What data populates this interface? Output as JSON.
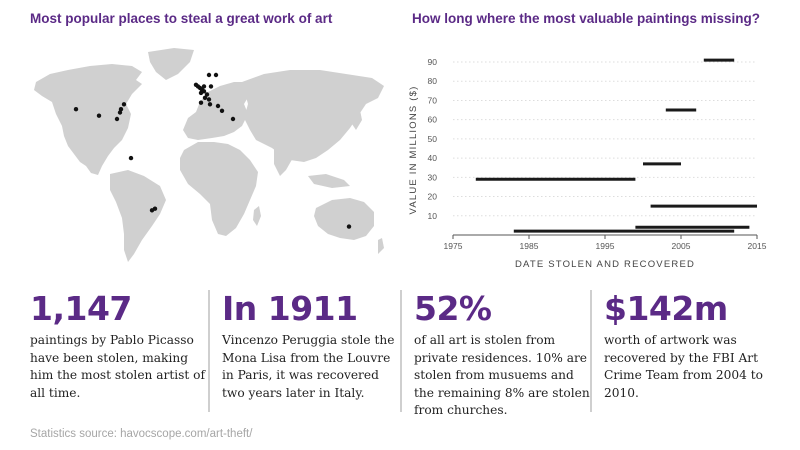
{
  "map": {
    "title": "Most popular places to steal a great work of art",
    "land_color": "#d0d0d0",
    "marker_color": "#111111",
    "locations": [
      {
        "lat": 38,
        "lon": -122
      },
      {
        "lat": 34,
        "lon": -99
      },
      {
        "lat": 41,
        "lon": -74
      },
      {
        "lat": 38,
        "lon": -77
      },
      {
        "lat": 36,
        "lon": -78
      },
      {
        "lat": 32,
        "lon": -81
      },
      {
        "lat": 8,
        "lon": -67
      },
      {
        "lat": -23,
        "lon": -43
      },
      {
        "lat": -24,
        "lon": -46
      },
      {
        "lat": -34,
        "lon": 151
      },
      {
        "lat": 53,
        "lon": -2
      },
      {
        "lat": 52,
        "lon": 0
      },
      {
        "lat": 51,
        "lon": 2
      },
      {
        "lat": 50,
        "lon": 4
      },
      {
        "lat": 49,
        "lon": 6
      },
      {
        "lat": 48,
        "lon": 3
      },
      {
        "lat": 52,
        "lon": 6
      },
      {
        "lat": 52,
        "lon": 13
      },
      {
        "lat": 59,
        "lon": 18
      },
      {
        "lat": 59,
        "lon": 11
      },
      {
        "lat": 47,
        "lon": 9
      },
      {
        "lat": 45,
        "lon": 7
      },
      {
        "lat": 44,
        "lon": 11
      },
      {
        "lat": 42,
        "lon": 3
      },
      {
        "lat": 41,
        "lon": 12
      },
      {
        "lat": 37,
        "lon": 24
      },
      {
        "lat": 40,
        "lon": 20
      },
      {
        "lat": 32,
        "lon": 35
      }
    ]
  },
  "chart_data": {
    "type": "range-bar",
    "title": "How long where the most valuable paintings missing?",
    "xlabel": "DATE STOLEN AND RECOVERED",
    "ylabel": "VALUE IN MILLIONS ($)",
    "xlim": [
      1975,
      2015
    ],
    "ylim": [
      0,
      90
    ],
    "xticks": [
      1975,
      1985,
      1995,
      2005,
      2015
    ],
    "yticks": [
      10,
      20,
      30,
      40,
      50,
      60,
      70,
      80,
      90
    ],
    "grid": true,
    "bar_color": "#1a1a1a",
    "ranges": [
      {
        "start": 2008,
        "end": 2012,
        "value": 91
      },
      {
        "start": 2003,
        "end": 2007,
        "value": 65
      },
      {
        "start": 2000,
        "end": 2005,
        "value": 37
      },
      {
        "start": 1978,
        "end": 1999,
        "value": 29
      },
      {
        "start": 2001,
        "end": 2015,
        "value": 15
      },
      {
        "start": 1999,
        "end": 2014,
        "value": 4
      },
      {
        "start": 1983,
        "end": 2012,
        "value": 2
      }
    ]
  },
  "stats": [
    {
      "big": "1,147",
      "text": "paintings by Pablo Picasso have been stolen, making him the most stolen artist of all time."
    },
    {
      "big": "In 1911",
      "text": "Vincenzo Peruggia stole the Mona Lisa from the Louvre in Paris, it was recovered two years later in Italy."
    },
    {
      "big": "52%",
      "text": "of all art is stolen from private residences. 10% are stolen from musuems and the remaining 8% are stolen from churches."
    },
    {
      "big": "$142m",
      "text": "worth of artwork was recovered by the FBI Art Crime Team from 2004 to 2010."
    }
  ],
  "source": "Statistics source: havocscope.com/art-theft/",
  "colors": {
    "accent": "#5b2a86"
  }
}
